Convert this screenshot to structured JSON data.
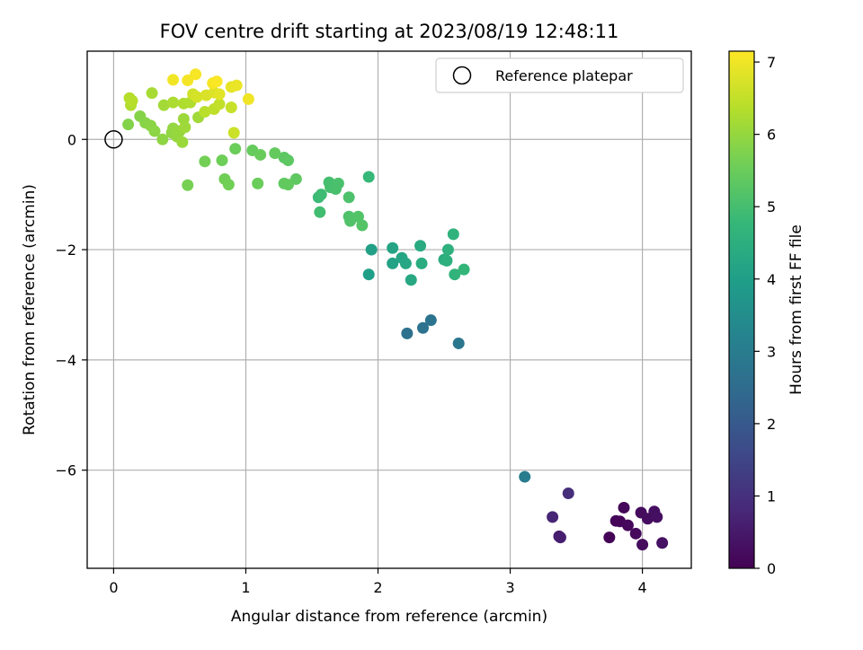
{
  "chart_data": {
    "type": "scatter",
    "title": "FOV centre drift starting at 2023/08/19 12:48:11",
    "xlabel": "Angular distance from reference (arcmin)",
    "ylabel": "Rotation from reference (arcmin)",
    "xlim": [
      -0.2,
      4.37
    ],
    "ylim": [
      -7.78,
      1.6
    ],
    "xticks": [
      0,
      1,
      2,
      3,
      4
    ],
    "xtick_labels": [
      "0",
      "1",
      "2",
      "3",
      "4"
    ],
    "yticks": [
      0,
      -2,
      -4,
      -6
    ],
    "ytick_labels": [
      "0",
      "−2",
      "−4",
      "−6"
    ],
    "grid": true,
    "legend": {
      "label": "Reference platepar",
      "position": "top-right"
    },
    "reference_point": {
      "x": 0,
      "y": 0
    },
    "colorbar": {
      "label": "Hours from first FF file",
      "range": [
        0,
        7.15
      ],
      "ticks": [
        0,
        1,
        2,
        3,
        4,
        5,
        6,
        7
      ],
      "tick_labels": [
        "0",
        "1",
        "2",
        "3",
        "4",
        "5",
        "6",
        "7"
      ],
      "colormap": [
        "#440154",
        "#482878",
        "#3e4989",
        "#31688e",
        "#26828e",
        "#1f9e89",
        "#35b779",
        "#6ece58",
        "#b5de2b",
        "#fde725"
      ]
    },
    "points": [
      {
        "x": 3.75,
        "y": -7.22,
        "c": 0.05
      },
      {
        "x": 3.8,
        "y": -6.92,
        "c": 0.08
      },
      {
        "x": 3.83,
        "y": -6.93,
        "c": 0.1
      },
      {
        "x": 3.86,
        "y": -6.68,
        "c": 0.12
      },
      {
        "x": 3.89,
        "y": -7.0,
        "c": 0.15
      },
      {
        "x": 3.95,
        "y": -7.15,
        "c": 0.18
      },
      {
        "x": 3.99,
        "y": -6.77,
        "c": 0.2
      },
      {
        "x": 4.0,
        "y": -7.35,
        "c": 0.22
      },
      {
        "x": 4.04,
        "y": -6.88,
        "c": 0.25
      },
      {
        "x": 4.09,
        "y": -6.75,
        "c": 0.28
      },
      {
        "x": 4.11,
        "y": -6.85,
        "c": 0.3
      },
      {
        "x": 4.15,
        "y": -7.32,
        "c": 0.32
      },
      {
        "x": 3.37,
        "y": -7.2,
        "c": 0.55
      },
      {
        "x": 3.38,
        "y": -7.22,
        "c": 0.6
      },
      {
        "x": 3.32,
        "y": -6.85,
        "c": 0.75
      },
      {
        "x": 3.44,
        "y": -6.42,
        "c": 0.95
      },
      {
        "x": 3.11,
        "y": -6.12,
        "c": 3.0
      },
      {
        "x": 2.22,
        "y": -3.52,
        "c": 2.65
      },
      {
        "x": 2.34,
        "y": -3.42,
        "c": 2.7
      },
      {
        "x": 2.4,
        "y": -3.28,
        "c": 2.75
      },
      {
        "x": 2.61,
        "y": -3.7,
        "c": 2.85
      },
      {
        "x": 1.93,
        "y": -2.45,
        "c": 4.0
      },
      {
        "x": 1.95,
        "y": -2.0,
        "c": 4.05
      },
      {
        "x": 2.11,
        "y": -2.25,
        "c": 4.1
      },
      {
        "x": 2.11,
        "y": -1.97,
        "c": 4.15
      },
      {
        "x": 2.18,
        "y": -2.15,
        "c": 4.2
      },
      {
        "x": 2.21,
        "y": -2.25,
        "c": 4.25
      },
      {
        "x": 2.25,
        "y": -2.55,
        "c": 4.3
      },
      {
        "x": 2.32,
        "y": -1.93,
        "c": 4.35
      },
      {
        "x": 2.33,
        "y": -2.25,
        "c": 4.4
      },
      {
        "x": 2.5,
        "y": -2.18,
        "c": 4.45
      },
      {
        "x": 2.52,
        "y": -2.2,
        "c": 4.5
      },
      {
        "x": 2.53,
        "y": -2.0,
        "c": 4.55
      },
      {
        "x": 2.57,
        "y": -1.72,
        "c": 4.6
      },
      {
        "x": 2.58,
        "y": -2.45,
        "c": 4.65
      },
      {
        "x": 2.65,
        "y": -2.36,
        "c": 4.7
      },
      {
        "x": 1.93,
        "y": -0.68,
        "c": 4.8
      },
      {
        "x": 1.55,
        "y": -1.05,
        "c": 4.85
      },
      {
        "x": 1.57,
        "y": -1.0,
        "c": 4.9
      },
      {
        "x": 1.56,
        "y": -1.32,
        "c": 4.95
      },
      {
        "x": 1.63,
        "y": -0.78,
        "c": 5.0
      },
      {
        "x": 1.64,
        "y": -0.87,
        "c": 5.02
      },
      {
        "x": 1.68,
        "y": -0.9,
        "c": 5.05
      },
      {
        "x": 1.7,
        "y": -0.8,
        "c": 5.08
      },
      {
        "x": 1.78,
        "y": -1.05,
        "c": 5.1
      },
      {
        "x": 1.78,
        "y": -1.4,
        "c": 5.12
      },
      {
        "x": 1.79,
        "y": -1.48,
        "c": 5.15
      },
      {
        "x": 1.85,
        "y": -1.4,
        "c": 5.18
      },
      {
        "x": 1.88,
        "y": -1.56,
        "c": 5.2
      },
      {
        "x": 1.29,
        "y": -0.33,
        "c": 5.3
      },
      {
        "x": 1.32,
        "y": -0.38,
        "c": 5.32
      },
      {
        "x": 1.38,
        "y": -0.72,
        "c": 5.35
      },
      {
        "x": 1.29,
        "y": -0.8,
        "c": 5.38
      },
      {
        "x": 1.32,
        "y": -0.82,
        "c": 5.4
      },
      {
        "x": 1.22,
        "y": -0.25,
        "c": 5.42
      },
      {
        "x": 1.05,
        "y": -0.2,
        "c": 5.45
      },
      {
        "x": 1.11,
        "y": -0.28,
        "c": 5.48
      },
      {
        "x": 1.09,
        "y": -0.8,
        "c": 5.5
      },
      {
        "x": 0.92,
        "y": -0.17,
        "c": 5.52
      },
      {
        "x": 0.82,
        "y": -0.38,
        "c": 5.55
      },
      {
        "x": 0.84,
        "y": -0.72,
        "c": 5.58
      },
      {
        "x": 0.87,
        "y": -0.82,
        "c": 5.6
      },
      {
        "x": 0.69,
        "y": -0.4,
        "c": 5.62
      },
      {
        "x": 0.56,
        "y": -0.83,
        "c": 5.65
      },
      {
        "x": 0.11,
        "y": 0.27,
        "c": 5.8
      },
      {
        "x": 0.2,
        "y": 0.42,
        "c": 5.82
      },
      {
        "x": 0.24,
        "y": 0.3,
        "c": 5.85
      },
      {
        "x": 0.28,
        "y": 0.25,
        "c": 5.88
      },
      {
        "x": 0.31,
        "y": 0.15,
        "c": 5.9
      },
      {
        "x": 0.37,
        "y": 0.0,
        "c": 5.92
      },
      {
        "x": 0.44,
        "y": 0.12,
        "c": 5.95
      },
      {
        "x": 0.45,
        "y": 0.2,
        "c": 5.97
      },
      {
        "x": 0.48,
        "y": 0.05,
        "c": 6.0
      },
      {
        "x": 0.5,
        "y": 0.15,
        "c": 6.02
      },
      {
        "x": 0.52,
        "y": -0.05,
        "c": 6.05
      },
      {
        "x": 0.53,
        "y": 0.37,
        "c": 6.08
      },
      {
        "x": 0.54,
        "y": 0.22,
        "c": 6.1
      },
      {
        "x": 0.64,
        "y": 0.4,
        "c": 6.12
      },
      {
        "x": 0.38,
        "y": 0.62,
        "c": 6.15
      },
      {
        "x": 0.29,
        "y": 0.84,
        "c": 6.2
      },
      {
        "x": 0.45,
        "y": 0.67,
        "c": 6.25
      },
      {
        "x": 0.53,
        "y": 0.65,
        "c": 6.28
      },
      {
        "x": 0.58,
        "y": 0.67,
        "c": 6.3
      },
      {
        "x": 0.13,
        "y": 0.62,
        "c": 6.32
      },
      {
        "x": 0.12,
        "y": 0.75,
        "c": 6.35
      },
      {
        "x": 0.14,
        "y": 0.7,
        "c": 6.38
      },
      {
        "x": 0.69,
        "y": 0.5,
        "c": 6.4
      },
      {
        "x": 0.76,
        "y": 0.55,
        "c": 6.45
      },
      {
        "x": 0.8,
        "y": 0.64,
        "c": 6.5
      },
      {
        "x": 0.89,
        "y": 0.58,
        "c": 6.55
      },
      {
        "x": 0.91,
        "y": 0.12,
        "c": 6.6
      },
      {
        "x": 0.6,
        "y": 0.82,
        "c": 6.65
      },
      {
        "x": 0.63,
        "y": 0.77,
        "c": 6.7
      },
      {
        "x": 0.7,
        "y": 0.8,
        "c": 6.75
      },
      {
        "x": 0.76,
        "y": 0.85,
        "c": 6.8
      },
      {
        "x": 0.8,
        "y": 0.82,
        "c": 6.85
      },
      {
        "x": 0.89,
        "y": 0.95,
        "c": 6.9
      },
      {
        "x": 0.93,
        "y": 0.98,
        "c": 6.95
      },
      {
        "x": 1.02,
        "y": 0.73,
        "c": 7.0
      },
      {
        "x": 0.45,
        "y": 1.08,
        "c": 7.02
      },
      {
        "x": 0.56,
        "y": 1.07,
        "c": 7.05
      },
      {
        "x": 0.62,
        "y": 1.18,
        "c": 7.08
      },
      {
        "x": 0.75,
        "y": 1.02,
        "c": 7.1
      },
      {
        "x": 0.78,
        "y": 1.05,
        "c": 7.12
      }
    ]
  }
}
